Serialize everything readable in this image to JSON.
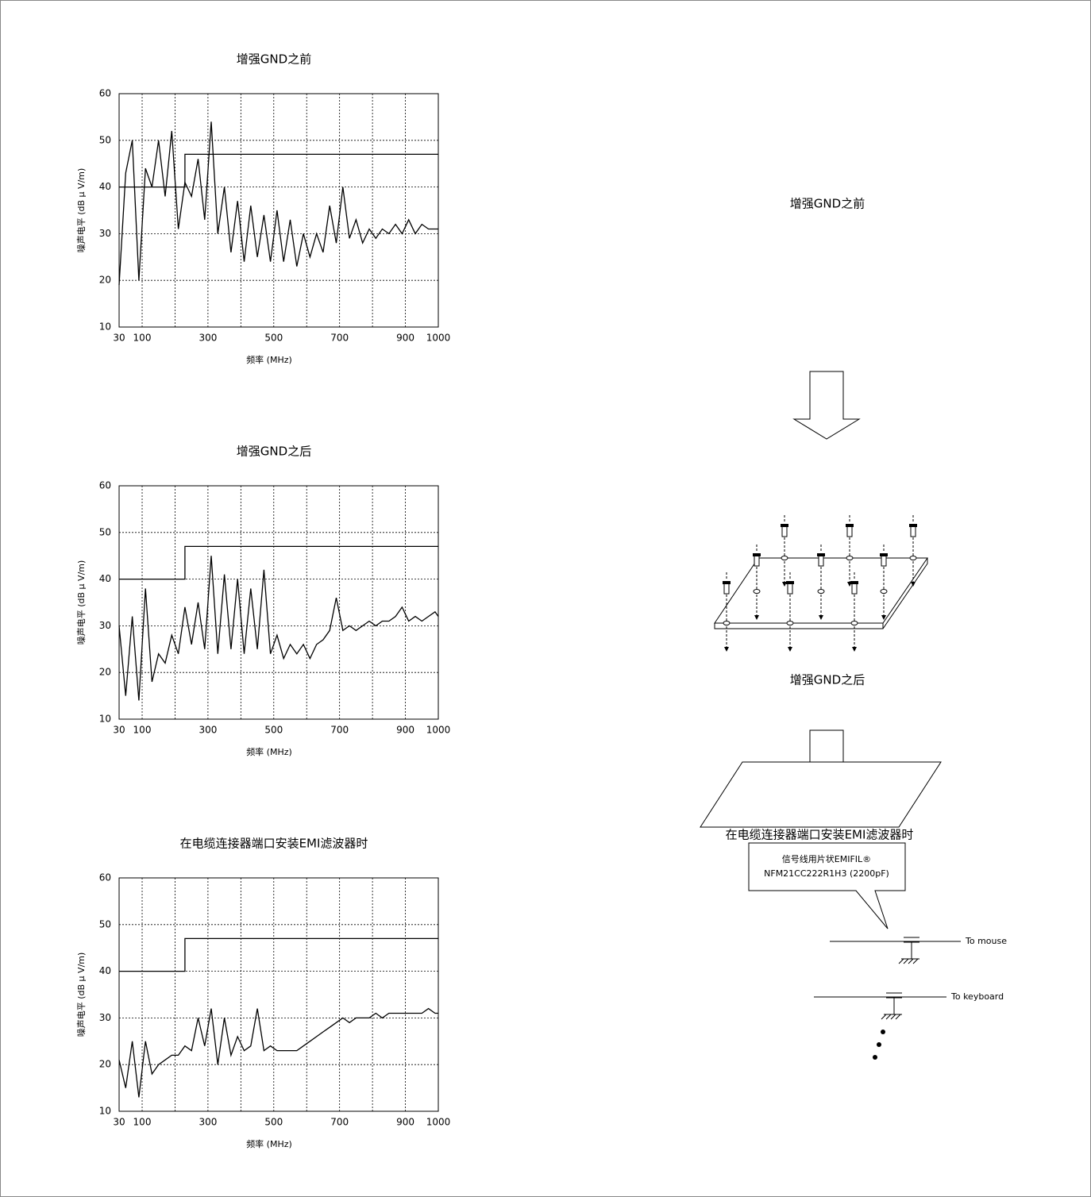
{
  "chart_data": [
    {
      "type": "line",
      "title": "增强GND之前",
      "xlabel": "频率 (MHz)",
      "ylabel": "噪声电平 (dB μ V/m)",
      "xlim": [
        30,
        1000
      ],
      "ylim": [
        10,
        60
      ],
      "xticks": [
        30,
        100,
        {
          "value": 200,
          "label": null
        },
        300,
        {
          "value": 400,
          "label": null
        },
        500,
        {
          "value": 600,
          "label": null
        },
        700,
        {
          "value": 800,
          "label": null
        },
        900,
        1000
      ],
      "yticks": [
        10,
        20,
        30,
        40,
        50,
        60
      ],
      "grid": true,
      "series": [
        {
          "color": "#000000",
          "x": [
            30,
            50,
            70,
            90,
            110,
            130,
            150,
            170,
            190,
            210,
            230,
            250,
            270,
            290,
            310,
            330,
            350,
            370,
            390,
            410,
            430,
            450,
            470,
            490,
            510,
            530,
            550,
            570,
            590,
            610,
            630,
            650,
            670,
            690,
            710,
            730,
            750,
            770,
            790,
            810,
            830,
            850,
            870,
            890,
            910,
            930,
            950,
            970,
            990,
            1000
          ],
          "values": [
            19,
            43,
            50,
            20,
            44,
            40,
            50,
            38,
            52,
            31,
            41,
            38,
            46,
            33,
            54,
            30,
            40,
            26,
            37,
            24,
            36,
            25,
            34,
            24,
            35,
            24,
            33,
            23,
            30,
            25,
            30,
            26,
            36,
            28,
            40,
            29,
            33,
            28,
            31,
            29,
            31,
            30,
            32,
            30,
            33,
            30,
            32,
            31,
            31,
            31
          ]
        },
        {
          "color": "#000000",
          "x": [
            30,
            230,
            230,
            1000
          ],
          "values": [
            40,
            40,
            47,
            47
          ]
        }
      ]
    },
    {
      "type": "line",
      "title": "增强GND之后",
      "xlabel": "频率 (MHz)",
      "ylabel": "噪声电平 (dB μ V/m)",
      "xlim": [
        30,
        1000
      ],
      "ylim": [
        10,
        60
      ],
      "xticks": [
        30,
        100,
        {
          "value": 200,
          "label": null
        },
        300,
        {
          "value": 400,
          "label": null
        },
        500,
        {
          "value": 600,
          "label": null
        },
        700,
        {
          "value": 800,
          "label": null
        },
        900,
        1000
      ],
      "yticks": [
        10,
        20,
        30,
        40,
        50,
        60
      ],
      "grid": true,
      "series": [
        {
          "color": "#000000",
          "x": [
            30,
            50,
            70,
            90,
            110,
            130,
            150,
            170,
            190,
            210,
            230,
            250,
            270,
            290,
            310,
            330,
            350,
            370,
            390,
            410,
            430,
            450,
            470,
            490,
            510,
            530,
            550,
            570,
            590,
            610,
            630,
            650,
            670,
            690,
            710,
            730,
            750,
            770,
            790,
            810,
            830,
            850,
            870,
            890,
            910,
            930,
            950,
            970,
            990,
            1000
          ],
          "values": [
            30,
            15,
            32,
            14,
            38,
            18,
            24,
            22,
            28,
            24,
            34,
            26,
            35,
            25,
            45,
            24,
            41,
            25,
            40,
            24,
            38,
            25,
            42,
            24,
            28,
            23,
            26,
            24,
            26,
            23,
            26,
            27,
            29,
            36,
            29,
            30,
            29,
            30,
            31,
            30,
            31,
            31,
            32,
            34,
            31,
            32,
            31,
            32,
            33,
            32
          ]
        },
        {
          "color": "#000000",
          "x": [
            30,
            230,
            230,
            1000
          ],
          "values": [
            40,
            40,
            47,
            47
          ]
        }
      ]
    },
    {
      "type": "line",
      "title": "在电缆连接器端口安装EMI滤波器时",
      "xlabel": "频率 (MHz)",
      "ylabel": "噪声电平 (dB μ V/m)",
      "xlim": [
        30,
        1000
      ],
      "ylim": [
        10,
        60
      ],
      "xticks": [
        30,
        100,
        {
          "value": 200,
          "label": null
        },
        300,
        {
          "value": 400,
          "label": null
        },
        500,
        {
          "value": 600,
          "label": null
        },
        700,
        {
          "value": 800,
          "label": null
        },
        900,
        1000
      ],
      "yticks": [
        10,
        20,
        30,
        40,
        50,
        60
      ],
      "grid": true,
      "series": [
        {
          "color": "#000000",
          "x": [
            30,
            50,
            70,
            90,
            110,
            130,
            150,
            170,
            190,
            210,
            230,
            250,
            270,
            290,
            310,
            330,
            350,
            370,
            390,
            410,
            430,
            450,
            470,
            490,
            510,
            530,
            550,
            570,
            590,
            610,
            630,
            650,
            670,
            690,
            710,
            730,
            750,
            770,
            790,
            810,
            830,
            850,
            870,
            890,
            910,
            930,
            950,
            970,
            990,
            1000
          ],
          "values": [
            21,
            15,
            25,
            13,
            25,
            18,
            20,
            21,
            22,
            22,
            24,
            23,
            30,
            24,
            32,
            20,
            30,
            22,
            26,
            23,
            24,
            32,
            23,
            24,
            23,
            23,
            23,
            23,
            24,
            25,
            26,
            27,
            28,
            29,
            30,
            29,
            30,
            30,
            30,
            31,
            30,
            31,
            31,
            31,
            31,
            31,
            31,
            32,
            31,
            31
          ]
        },
        {
          "color": "#000000",
          "x": [
            30,
            230,
            230,
            1000
          ],
          "values": [
            40,
            40,
            47,
            47
          ]
        }
      ]
    }
  ],
  "diagram": {
    "label_before": "增强GND之前",
    "label_after": "增强GND之后",
    "callout": [
      "信号线用片状EMIFIL®",
      "NFM21CC222R1H3 (2200pF)"
    ],
    "port_mouse": "To mouse",
    "port_keyboard": "To keyboard",
    "caption": "在电缆连接器端口安装EMI滤波器时"
  }
}
